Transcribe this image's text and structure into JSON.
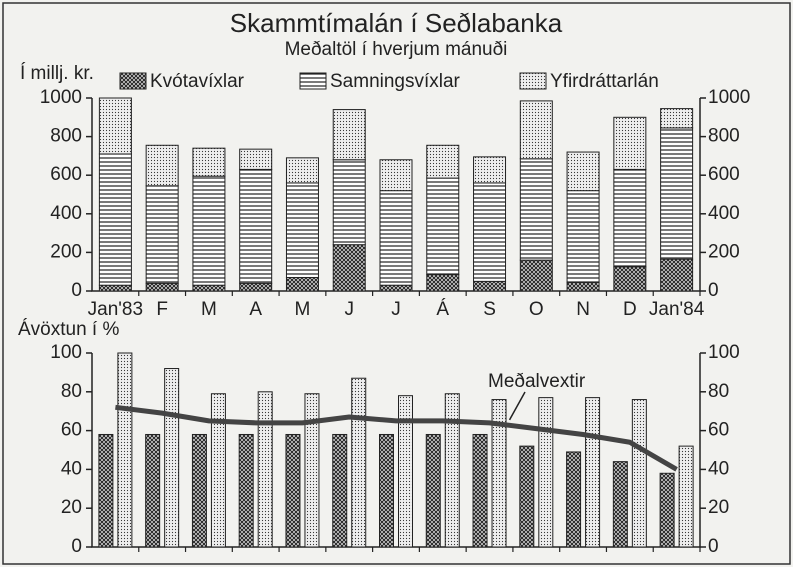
{
  "chart_data": [
    {
      "type": "bar",
      "stacked": true,
      "title": "Skammtímalán í Seðlabanka",
      "subtitle": "Meðaltöl í hverjum mánuði",
      "y_label": "Í millj. kr.",
      "categories": [
        "Jan'83",
        "F",
        "M",
        "A",
        "M",
        "J",
        "J",
        "Á",
        "S",
        "O",
        "N",
        "D",
        "Jan'84"
      ],
      "series": [
        {
          "name": "Kvótavíxlar",
          "color": "#222",
          "pattern": "crosshatch",
          "values": [
            30,
            40,
            30,
            40,
            70,
            240,
            30,
            85,
            50,
            160,
            45,
            125,
            165
          ]
        },
        {
          "name": "Samningsvíxlar",
          "color": "#222",
          "pattern": "lines",
          "values": [
            680,
            505,
            565,
            590,
            490,
            440,
            490,
            500,
            510,
            525,
            475,
            505,
            680
          ]
        },
        {
          "name": "Yfirdráttarlán",
          "color": "#222",
          "pattern": "dots",
          "values": [
            290,
            210,
            145,
            105,
            130,
            260,
            160,
            170,
            135,
            300,
            200,
            270,
            100
          ]
        }
      ],
      "ylim": [
        0,
        1000
      ],
      "yticks": [
        0,
        200,
        400,
        600,
        800,
        1000
      ],
      "legend": "top"
    },
    {
      "type": "bar",
      "y_label": "Ávöxtun í %",
      "series": [
        {
          "color": "#222",
          "pattern": "crosshatch",
          "values": [
            58,
            58,
            58,
            58,
            58,
            58,
            58,
            58,
            58,
            52,
            49,
            44,
            38
          ]
        },
        {
          "color": "#222",
          "pattern": "dots",
          "values": [
            100,
            92,
            79,
            80,
            79,
            87,
            78,
            79,
            76,
            77,
            77,
            76,
            52
          ]
        },
        {
          "name": "Meðalvextir",
          "type": "line",
          "color": "#444",
          "values": [
            72,
            69,
            65,
            64,
            64,
            67,
            65,
            65,
            64,
            61,
            58,
            54,
            40
          ]
        }
      ],
      "ylim": [
        0,
        100
      ],
      "yticks": [
        0,
        20,
        40,
        60,
        80,
        100
      ]
    }
  ]
}
